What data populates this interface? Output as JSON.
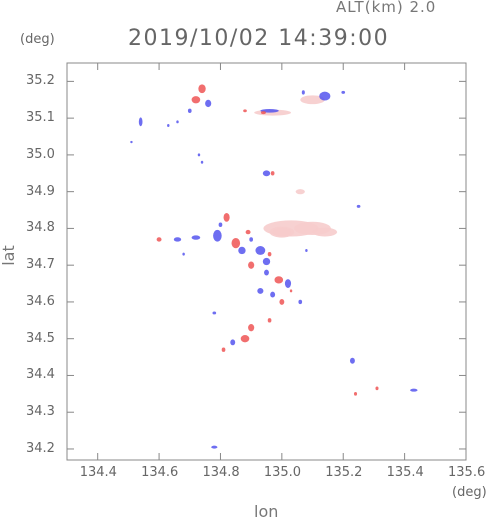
{
  "header": {
    "altitude": "ALT(km) 2.0",
    "timestamp": "2019/10/02 14:39:00"
  },
  "axes": {
    "x_unit": "(deg)",
    "y_unit": "(deg)",
    "x_label": "lon",
    "y_label": "lat",
    "x_ticks": [
      "134.4",
      "134.6",
      "134.8",
      "135.0",
      "135.2",
      "135.4",
      "135.6"
    ],
    "y_ticks": [
      "35.2",
      "35.1",
      "35.0",
      "34.9",
      "34.8",
      "34.7",
      "34.6",
      "34.5",
      "34.4",
      "34.3",
      "34.2"
    ]
  },
  "map_extent": {
    "lon": [
      134.3,
      135.6
    ],
    "lat": [
      34.17,
      35.25
    ]
  },
  "colors": {
    "positive": "#ee5555",
    "negative": "#5555ee",
    "light": "#f6cccc",
    "axis": "#888888"
  },
  "echoes": [
    {
      "lon": 135.03,
      "lat": 34.8,
      "rlon": 0.09,
      "rlat": 0.022,
      "type": "light"
    },
    {
      "lon": 135.1,
      "lat": 34.8,
      "rlon": 0.06,
      "rlat": 0.018,
      "type": "light"
    },
    {
      "lon": 135.14,
      "lat": 34.79,
      "rlon": 0.04,
      "rlat": 0.012,
      "type": "light"
    },
    {
      "lon": 135.0,
      "lat": 34.79,
      "rlon": 0.03,
      "rlat": 0.012,
      "type": "light"
    },
    {
      "lon": 135.1,
      "lat": 35.15,
      "rlon": 0.04,
      "rlat": 0.012,
      "type": "light"
    },
    {
      "lon": 134.97,
      "lat": 35.115,
      "rlon": 0.06,
      "rlat": 0.008,
      "type": "light"
    },
    {
      "lon": 135.06,
      "lat": 34.9,
      "rlon": 0.015,
      "rlat": 0.007,
      "type": "light"
    },
    {
      "lon": 135.0,
      "lat": 34.79,
      "rlon": 0.04,
      "rlat": 0.015,
      "type": "light"
    },
    {
      "lon": 134.74,
      "lat": 35.18,
      "rlon": 0.012,
      "rlat": 0.012,
      "type": "positive"
    },
    {
      "lon": 134.72,
      "lat": 35.15,
      "rlon": 0.014,
      "rlat": 0.01,
      "type": "positive"
    },
    {
      "lon": 134.76,
      "lat": 35.14,
      "rlon": 0.01,
      "rlat": 0.01,
      "type": "negative"
    },
    {
      "lon": 134.7,
      "lat": 35.12,
      "rlon": 0.006,
      "rlat": 0.006,
      "type": "negative"
    },
    {
      "lon": 134.54,
      "lat": 35.09,
      "rlon": 0.006,
      "rlat": 0.012,
      "type": "negative"
    },
    {
      "lon": 134.96,
      "lat": 35.12,
      "rlon": 0.03,
      "rlat": 0.005,
      "type": "negative"
    },
    {
      "lon": 135.14,
      "lat": 35.16,
      "rlon": 0.018,
      "rlat": 0.012,
      "type": "negative"
    },
    {
      "lon": 134.95,
      "lat": 34.95,
      "rlon": 0.012,
      "rlat": 0.008,
      "type": "negative"
    },
    {
      "lon": 134.97,
      "lat": 34.95,
      "rlon": 0.006,
      "rlat": 0.006,
      "type": "positive"
    },
    {
      "lon": 134.82,
      "lat": 34.83,
      "rlon": 0.01,
      "rlat": 0.012,
      "type": "positive"
    },
    {
      "lon": 134.79,
      "lat": 34.78,
      "rlon": 0.014,
      "rlat": 0.016,
      "type": "negative"
    },
    {
      "lon": 134.85,
      "lat": 34.76,
      "rlon": 0.014,
      "rlat": 0.014,
      "type": "positive"
    },
    {
      "lon": 134.87,
      "lat": 34.74,
      "rlon": 0.012,
      "rlat": 0.01,
      "type": "negative"
    },
    {
      "lon": 134.6,
      "lat": 34.77,
      "rlon": 0.008,
      "rlat": 0.006,
      "type": "positive"
    },
    {
      "lon": 134.66,
      "lat": 34.77,
      "rlon": 0.012,
      "rlat": 0.006,
      "type": "negative"
    },
    {
      "lon": 134.72,
      "lat": 34.775,
      "rlon": 0.014,
      "rlat": 0.006,
      "type": "negative"
    },
    {
      "lon": 134.93,
      "lat": 34.74,
      "rlon": 0.016,
      "rlat": 0.012,
      "type": "negative"
    },
    {
      "lon": 134.95,
      "lat": 34.71,
      "rlon": 0.012,
      "rlat": 0.01,
      "type": "negative"
    },
    {
      "lon": 134.9,
      "lat": 34.7,
      "rlon": 0.01,
      "rlat": 0.01,
      "type": "positive"
    },
    {
      "lon": 134.99,
      "lat": 34.66,
      "rlon": 0.014,
      "rlat": 0.01,
      "type": "positive"
    },
    {
      "lon": 135.02,
      "lat": 34.65,
      "rlon": 0.01,
      "rlat": 0.012,
      "type": "negative"
    },
    {
      "lon": 134.97,
      "lat": 34.62,
      "rlon": 0.008,
      "rlat": 0.008,
      "type": "negative"
    },
    {
      "lon": 135.0,
      "lat": 34.6,
      "rlon": 0.008,
      "rlat": 0.008,
      "type": "positive"
    },
    {
      "lon": 134.9,
      "lat": 34.53,
      "rlon": 0.01,
      "rlat": 0.01,
      "type": "positive"
    },
    {
      "lon": 134.88,
      "lat": 34.5,
      "rlon": 0.014,
      "rlat": 0.01,
      "type": "positive"
    },
    {
      "lon": 134.84,
      "lat": 34.49,
      "rlon": 0.008,
      "rlat": 0.008,
      "type": "negative"
    },
    {
      "lon": 134.81,
      "lat": 34.47,
      "rlon": 0.006,
      "rlat": 0.006,
      "type": "positive"
    },
    {
      "lon": 135.23,
      "lat": 34.44,
      "rlon": 0.008,
      "rlat": 0.008,
      "type": "negative"
    },
    {
      "lon": 135.24,
      "lat": 34.35,
      "rlon": 0.005,
      "rlat": 0.005,
      "type": "positive"
    },
    {
      "lon": 135.31,
      "lat": 34.365,
      "rlon": 0.005,
      "rlat": 0.005,
      "type": "positive"
    },
    {
      "lon": 135.43,
      "lat": 34.36,
      "rlon": 0.012,
      "rlat": 0.004,
      "type": "negative"
    },
    {
      "lon": 134.78,
      "lat": 34.205,
      "rlon": 0.01,
      "rlat": 0.004,
      "type": "negative"
    },
    {
      "lon": 134.94,
      "lat": 35.115,
      "rlon": 0.008,
      "rlat": 0.004,
      "type": "positive"
    },
    {
      "lon": 134.88,
      "lat": 35.12,
      "rlon": 0.006,
      "rlat": 0.004,
      "type": "positive"
    },
    {
      "lon": 134.78,
      "lat": 34.57,
      "rlon": 0.006,
      "rlat": 0.004,
      "type": "negative"
    },
    {
      "lon": 135.07,
      "lat": 35.17,
      "rlon": 0.005,
      "rlat": 0.006,
      "type": "negative"
    },
    {
      "lon": 135.25,
      "lat": 34.86,
      "rlon": 0.006,
      "rlat": 0.004,
      "type": "negative"
    },
    {
      "lon": 134.68,
      "lat": 34.73,
      "rlon": 0.004,
      "rlat": 0.004,
      "type": "negative"
    },
    {
      "lon": 134.95,
      "lat": 34.68,
      "rlon": 0.008,
      "rlat": 0.008,
      "type": "negative"
    },
    {
      "lon": 134.93,
      "lat": 34.63,
      "rlon": 0.01,
      "rlat": 0.008,
      "type": "negative"
    },
    {
      "lon": 134.96,
      "lat": 34.55,
      "rlon": 0.006,
      "rlat": 0.006,
      "type": "positive"
    },
    {
      "lon": 134.89,
      "lat": 34.79,
      "rlon": 0.008,
      "rlat": 0.006,
      "type": "positive"
    },
    {
      "lon": 134.9,
      "lat": 34.77,
      "rlon": 0.006,
      "rlat": 0.006,
      "type": "negative"
    },
    {
      "lon": 134.96,
      "lat": 34.73,
      "rlon": 0.006,
      "rlat": 0.006,
      "type": "positive"
    },
    {
      "lon": 135.06,
      "lat": 34.6,
      "rlon": 0.006,
      "rlat": 0.006,
      "type": "negative"
    },
    {
      "lon": 135.03,
      "lat": 34.63,
      "rlon": 0.004,
      "rlat": 0.004,
      "type": "positive"
    },
    {
      "lon": 134.8,
      "lat": 34.81,
      "rlon": 0.006,
      "rlat": 0.006,
      "type": "negative"
    },
    {
      "lon": 134.63,
      "lat": 35.08,
      "rlon": 0.004,
      "rlat": 0.004,
      "type": "negative"
    },
    {
      "lon": 134.66,
      "lat": 35.09,
      "rlon": 0.004,
      "rlat": 0.004,
      "type": "negative"
    },
    {
      "lon": 134.74,
      "lat": 34.98,
      "rlon": 0.004,
      "rlat": 0.004,
      "type": "negative"
    },
    {
      "lon": 134.73,
      "lat": 35.0,
      "rlon": 0.004,
      "rlat": 0.004,
      "type": "negative"
    },
    {
      "lon": 135.2,
      "lat": 35.17,
      "rlon": 0.006,
      "rlat": 0.004,
      "type": "negative"
    },
    {
      "lon": 134.51,
      "lat": 35.035,
      "rlon": 0.004,
      "rlat": 0.003,
      "type": "negative"
    },
    {
      "lon": 135.08,
      "lat": 34.74,
      "rlon": 0.004,
      "rlat": 0.004,
      "type": "negative"
    }
  ]
}
